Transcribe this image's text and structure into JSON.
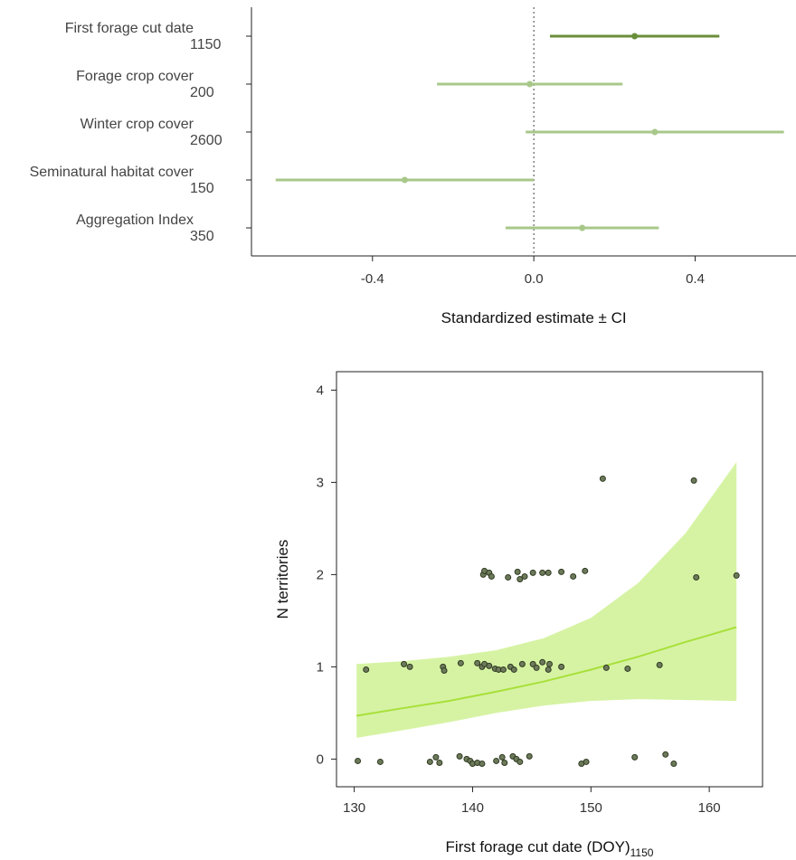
{
  "chart_data": [
    {
      "type": "forest",
      "xlabel": "Standardized estimate ± CI",
      "xlim": [
        -0.7,
        0.65
      ],
      "xticks": [
        -0.4,
        0.0,
        0.4
      ],
      "xtick_labels": [
        "-0.4",
        "0.0",
        "0.4"
      ],
      "reference_line": 0,
      "rows": [
        {
          "label": "First forage cut date",
          "scale": "1150",
          "estimate": 0.25,
          "lower": 0.04,
          "upper": 0.46,
          "color": "#6a8f3a"
        },
        {
          "label": "Forage crop cover",
          "scale": "200",
          "estimate": -0.01,
          "lower": -0.24,
          "upper": 0.22,
          "color": "#a8c88a"
        },
        {
          "label": "Winter crop cover",
          "scale": "2600",
          "estimate": 0.3,
          "lower": -0.02,
          "upper": 0.62,
          "color": "#a8c88a"
        },
        {
          "label": "Seminatural habitat cover",
          "scale": "150",
          "estimate": -0.32,
          "lower": -0.64,
          "upper": 0.0,
          "color": "#a8c88a"
        },
        {
          "label": "Aggregation Index",
          "scale": "350",
          "estimate": 0.12,
          "lower": -0.07,
          "upper": 0.31,
          "color": "#a8c88a"
        }
      ]
    },
    {
      "type": "scatter",
      "xlabel": "First forage cut date (DOY)",
      "xlabel_sub": "1150",
      "ylabel": "N territories",
      "xlim": [
        128.5,
        164.5
      ],
      "ylim": [
        -0.3,
        4.2
      ],
      "xticks": [
        130,
        140,
        150,
        160
      ],
      "xtick_labels": [
        "130",
        "140",
        "150",
        "160"
      ],
      "yticks": [
        0,
        1,
        2,
        3,
        4
      ],
      "ytick_labels": [
        "0",
        "1",
        "2",
        "3",
        "4"
      ],
      "colors": {
        "point": "#6d7a5a",
        "point_stroke": "#2f3a22",
        "fit_line": "#a8e03a",
        "band": "#d6f3a4"
      },
      "fit": {
        "x": [
          130.2,
          134,
          138,
          142,
          146,
          150,
          154,
          158,
          162.3
        ],
        "y": [
          0.47,
          0.55,
          0.63,
          0.73,
          0.84,
          0.97,
          1.11,
          1.27,
          1.43
        ],
        "lower": [
          0.23,
          0.31,
          0.4,
          0.5,
          0.58,
          0.63,
          0.65,
          0.64,
          0.63
        ],
        "upper": [
          1.03,
          1.06,
          1.11,
          1.18,
          1.31,
          1.53,
          1.91,
          2.45,
          3.22
        ]
      },
      "points": [
        {
          "x": 130.3,
          "y": -0.02
        },
        {
          "x": 132.2,
          "y": -0.03
        },
        {
          "x": 136.4,
          "y": -0.03
        },
        {
          "x": 136.9,
          "y": 0.02
        },
        {
          "x": 137.2,
          "y": -0.04
        },
        {
          "x": 138.9,
          "y": 0.03
        },
        {
          "x": 139.5,
          "y": 0.0
        },
        {
          "x": 139.8,
          "y": -0.02
        },
        {
          "x": 140.0,
          "y": -0.05
        },
        {
          "x": 140.4,
          "y": -0.04
        },
        {
          "x": 140.8,
          "y": -0.05
        },
        {
          "x": 142.0,
          "y": -0.02
        },
        {
          "x": 142.5,
          "y": 0.02
        },
        {
          "x": 142.7,
          "y": -0.04
        },
        {
          "x": 143.4,
          "y": 0.03
        },
        {
          "x": 143.7,
          "y": 0.0
        },
        {
          "x": 144.0,
          "y": -0.03
        },
        {
          "x": 144.8,
          "y": 0.03
        },
        {
          "x": 149.2,
          "y": -0.05
        },
        {
          "x": 149.6,
          "y": -0.03
        },
        {
          "x": 153.7,
          "y": 0.02
        },
        {
          "x": 156.3,
          "y": 0.05
        },
        {
          "x": 157.0,
          "y": -0.05
        },
        {
          "x": 131.0,
          "y": 0.97
        },
        {
          "x": 134.2,
          "y": 1.03
        },
        {
          "x": 134.7,
          "y": 1.0
        },
        {
          "x": 137.5,
          "y": 1.0
        },
        {
          "x": 137.6,
          "y": 0.96
        },
        {
          "x": 139.0,
          "y": 1.04
        },
        {
          "x": 140.4,
          "y": 1.04
        },
        {
          "x": 140.8,
          "y": 1.0
        },
        {
          "x": 141.0,
          "y": 1.03
        },
        {
          "x": 141.4,
          "y": 1.01
        },
        {
          "x": 141.9,
          "y": 0.98
        },
        {
          "x": 142.2,
          "y": 0.97
        },
        {
          "x": 142.6,
          "y": 0.97
        },
        {
          "x": 143.2,
          "y": 1.0
        },
        {
          "x": 143.5,
          "y": 0.97
        },
        {
          "x": 144.2,
          "y": 1.03
        },
        {
          "x": 145.1,
          "y": 1.03
        },
        {
          "x": 145.4,
          "y": 0.99
        },
        {
          "x": 145.9,
          "y": 1.05
        },
        {
          "x": 146.4,
          "y": 0.97
        },
        {
          "x": 146.5,
          "y": 1.03
        },
        {
          "x": 147.5,
          "y": 1.0
        },
        {
          "x": 151.3,
          "y": 0.99
        },
        {
          "x": 153.1,
          "y": 0.98
        },
        {
          "x": 155.8,
          "y": 1.02
        },
        {
          "x": 140.9,
          "y": 2.0
        },
        {
          "x": 141.0,
          "y": 2.04
        },
        {
          "x": 141.4,
          "y": 2.02
        },
        {
          "x": 141.6,
          "y": 1.98
        },
        {
          "x": 143.0,
          "y": 1.97
        },
        {
          "x": 143.8,
          "y": 2.03
        },
        {
          "x": 144.0,
          "y": 1.95
        },
        {
          "x": 144.4,
          "y": 1.98
        },
        {
          "x": 145.1,
          "y": 2.02
        },
        {
          "x": 145.9,
          "y": 2.02
        },
        {
          "x": 146.4,
          "y": 2.02
        },
        {
          "x": 147.5,
          "y": 2.03
        },
        {
          "x": 148.5,
          "y": 1.98
        },
        {
          "x": 149.5,
          "y": 2.04
        },
        {
          "x": 158.9,
          "y": 1.97
        },
        {
          "x": 162.3,
          "y": 1.99
        },
        {
          "x": 151.0,
          "y": 3.04
        },
        {
          "x": 158.7,
          "y": 3.02
        }
      ]
    }
  ]
}
